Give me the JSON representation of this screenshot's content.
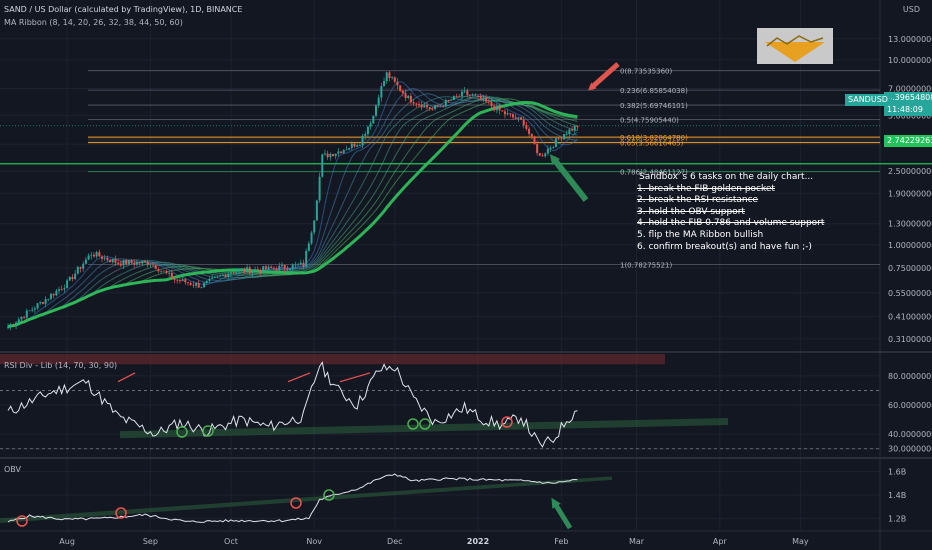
{
  "header": {
    "symbol_line": "SAND / US Dollar (calculated by TradingView), 1D, BINANCE",
    "indicator_line": "MA Ribbon (8, 14, 20, 26, 32, 38, 44, 50, 60)",
    "currency": "USD"
  },
  "panes": {
    "rsi_label": "RSI Div - Lib (14, 70, 30, 90)",
    "obv_label": "OBV"
  },
  "price_badge": {
    "symbol": "SANDUSD",
    "price": "4.39654808",
    "countdown": "11:48:09"
  },
  "level_badge": {
    "value": "2.74229263"
  },
  "annotation": {
    "title": "Sandbox´s 6 tasks on the daily chart...",
    "tasks": [
      {
        "text": "1. break the FIB golden pocket",
        "done": true
      },
      {
        "text": "2. break the RSI resistance",
        "done": true
      },
      {
        "text": "3. hold the OBV support",
        "done": true
      },
      {
        "text": "4. hold the FIB 0.786 and volume support",
        "done": true
      },
      {
        "text": "5. flip the MA Ribbon bullish",
        "done": false
      },
      {
        "text": "6. confirm breakout(s) and have fun ;-)",
        "done": false
      }
    ]
  },
  "colors": {
    "background": "#131722",
    "grid": "#1e2230",
    "bull": "#26a69a",
    "bear": "#ef5350",
    "ribbon_slow": "#2ebd5a",
    "text": "#d1d4dc",
    "axis_text": "#b2b5be",
    "fib": "#787b86",
    "golden_pocket": "#f0a030",
    "level_line": "#21c45a",
    "rsi_line": "#e0e3eb",
    "overbought_band": "#7a2b2f",
    "obv_line": "#e0e3eb"
  },
  "chart_data": [
    {
      "type": "candlestick",
      "pane": "price",
      "scale": "log",
      "x_ticks": [
        "Aug",
        "Sep",
        "Oct",
        "Nov",
        "Dec",
        "2022",
        "Feb",
        "Mar",
        "Apr",
        "May"
      ],
      "y_ticks": [
        {
          "label": "13.00000000",
          "value": 13.0
        },
        {
          "label": "10.00000000",
          "value": 10.0
        },
        {
          "label": "7.00000000",
          "value": 7.0
        },
        {
          "label": "5.00000000",
          "value": 5.0
        },
        {
          "label": "3.50000000",
          "value": 3.5
        },
        {
          "label": "2.50000000",
          "value": 2.5
        },
        {
          "label": "1.90000000",
          "value": 1.9
        },
        {
          "label": "1.30000000",
          "value": 1.3
        },
        {
          "label": "1.00000000",
          "value": 1.0
        },
        {
          "label": "0.75000000",
          "value": 0.75
        },
        {
          "label": "0.55000000",
          "value": 0.55
        },
        {
          "label": "0.41000000",
          "value": 0.41
        },
        {
          "label": "0.31000000",
          "value": 0.31
        }
      ],
      "fib_levels": [
        {
          "label": "0(8.73535360)",
          "value": 8.7353536
        },
        {
          "label": "0.236(6.85854038)",
          "value": 6.85854038
        },
        {
          "label": "0.382(5.69746101)",
          "value": 5.69746101
        },
        {
          "label": "0.5(4.75905440)",
          "value": 4.7590544
        },
        {
          "label": "0.618(3.82064780)",
          "value": 3.8206478
        },
        {
          "label": "0.65(3.56616465)",
          "value": 3.56616465
        },
        {
          "label": "0.786(2.48461127)",
          "value": 2.48461127
        },
        {
          "label": "1(0.78275521)",
          "value": 0.78275521
        }
      ],
      "key_points": [
        {
          "date": "2021-07-10",
          "price": 0.36
        },
        {
          "date": "2021-08-01",
          "price": 0.62
        },
        {
          "date": "2021-08-10",
          "price": 0.9
        },
        {
          "date": "2021-08-20",
          "price": 0.8
        },
        {
          "date": "2021-09-01",
          "price": 0.8
        },
        {
          "date": "2021-09-10",
          "price": 0.65
        },
        {
          "date": "2021-09-20",
          "price": 0.6
        },
        {
          "date": "2021-10-01",
          "price": 0.72
        },
        {
          "date": "2021-10-15",
          "price": 0.74
        },
        {
          "date": "2021-10-28",
          "price": 0.78
        },
        {
          "date": "2021-11-01",
          "price": 1.4
        },
        {
          "date": "2021-11-04",
          "price": 3.0
        },
        {
          "date": "2021-11-10",
          "price": 3.2
        },
        {
          "date": "2021-11-18",
          "price": 3.6
        },
        {
          "date": "2021-11-23",
          "price": 5.0
        },
        {
          "date": "2021-11-25",
          "price": 6.5
        },
        {
          "date": "2021-11-28",
          "price": 8.4
        },
        {
          "date": "2021-12-02",
          "price": 7.2
        },
        {
          "date": "2021-12-06",
          "price": 6.2
        },
        {
          "date": "2021-12-15",
          "price": 5.4
        },
        {
          "date": "2021-12-27",
          "price": 6.6
        },
        {
          "date": "2022-01-03",
          "price": 6.0
        },
        {
          "date": "2022-01-10",
          "price": 5.2
        },
        {
          "date": "2022-01-18",
          "price": 4.6
        },
        {
          "date": "2022-01-24",
          "price": 3.0
        },
        {
          "date": "2022-01-28",
          "price": 3.4
        },
        {
          "date": "2022-02-02",
          "price": 4.0
        },
        {
          "date": "2022-02-07",
          "price": 4.4
        }
      ]
    },
    {
      "type": "line",
      "pane": "rsi",
      "name": "RSI Div - Lib (14, 70, 30, 90)",
      "y_ticks": [
        {
          "label": "80.00000000",
          "value": 80
        },
        {
          "label": "60.00000000",
          "value": 60
        },
        {
          "label": "40.00000000",
          "value": 40
        },
        {
          "label": "30.00000000",
          "value": 30
        }
      ],
      "bands": {
        "upper": 70,
        "lower": 30,
        "extreme": 90
      },
      "points": [
        {
          "date": "2021-07-10",
          "value": 55
        },
        {
          "date": "2021-07-25",
          "value": 68
        },
        {
          "date": "2021-08-08",
          "value": 76
        },
        {
          "date": "2021-08-20",
          "value": 52
        },
        {
          "date": "2021-09-03",
          "value": 40
        },
        {
          "date": "2021-09-12",
          "value": 48
        },
        {
          "date": "2021-09-22",
          "value": 42
        },
        {
          "date": "2021-10-05",
          "value": 50
        },
        {
          "date": "2021-10-15",
          "value": 45
        },
        {
          "date": "2021-10-28",
          "value": 52
        },
        {
          "date": "2021-11-03",
          "value": 88
        },
        {
          "date": "2021-11-10",
          "value": 70
        },
        {
          "date": "2021-11-17",
          "value": 60
        },
        {
          "date": "2021-11-25",
          "value": 84
        },
        {
          "date": "2021-12-01",
          "value": 86
        },
        {
          "date": "2021-12-08",
          "value": 64
        },
        {
          "date": "2021-12-16",
          "value": 48
        },
        {
          "date": "2021-12-27",
          "value": 58
        },
        {
          "date": "2022-01-03",
          "value": 50
        },
        {
          "date": "2022-01-10",
          "value": 46
        },
        {
          "date": "2022-01-17",
          "value": 52
        },
        {
          "date": "2022-01-24",
          "value": 32
        },
        {
          "date": "2022-01-29",
          "value": 36
        },
        {
          "date": "2022-02-03",
          "value": 50
        },
        {
          "date": "2022-02-07",
          "value": 56
        }
      ]
    },
    {
      "type": "line",
      "pane": "obv",
      "name": "OBV",
      "y_ticks": [
        {
          "label": "1.6B",
          "value": 1.6
        },
        {
          "label": "1.4B",
          "value": 1.4
        },
        {
          "label": "1.2B",
          "value": 1.2
        }
      ],
      "points": [
        {
          "date": "2021-07-10",
          "value": 1.17
        },
        {
          "date": "2021-07-18",
          "value": 1.22
        },
        {
          "date": "2021-08-01",
          "value": 1.19
        },
        {
          "date": "2021-08-15",
          "value": 1.2
        },
        {
          "date": "2021-08-30",
          "value": 1.23
        },
        {
          "date": "2021-09-15",
          "value": 1.17
        },
        {
          "date": "2021-10-01",
          "value": 1.18
        },
        {
          "date": "2021-10-20",
          "value": 1.18
        },
        {
          "date": "2021-10-30",
          "value": 1.2
        },
        {
          "date": "2021-11-03",
          "value": 1.36
        },
        {
          "date": "2021-11-10",
          "value": 1.41
        },
        {
          "date": "2021-11-18",
          "value": 1.46
        },
        {
          "date": "2021-11-25",
          "value": 1.54
        },
        {
          "date": "2021-12-01",
          "value": 1.58
        },
        {
          "date": "2021-12-08",
          "value": 1.52
        },
        {
          "date": "2021-12-20",
          "value": 1.54
        },
        {
          "date": "2022-01-05",
          "value": 1.53
        },
        {
          "date": "2022-01-20",
          "value": 1.52
        },
        {
          "date": "2022-01-28",
          "value": 1.5
        },
        {
          "date": "2022-02-07",
          "value": 1.53
        }
      ]
    }
  ]
}
